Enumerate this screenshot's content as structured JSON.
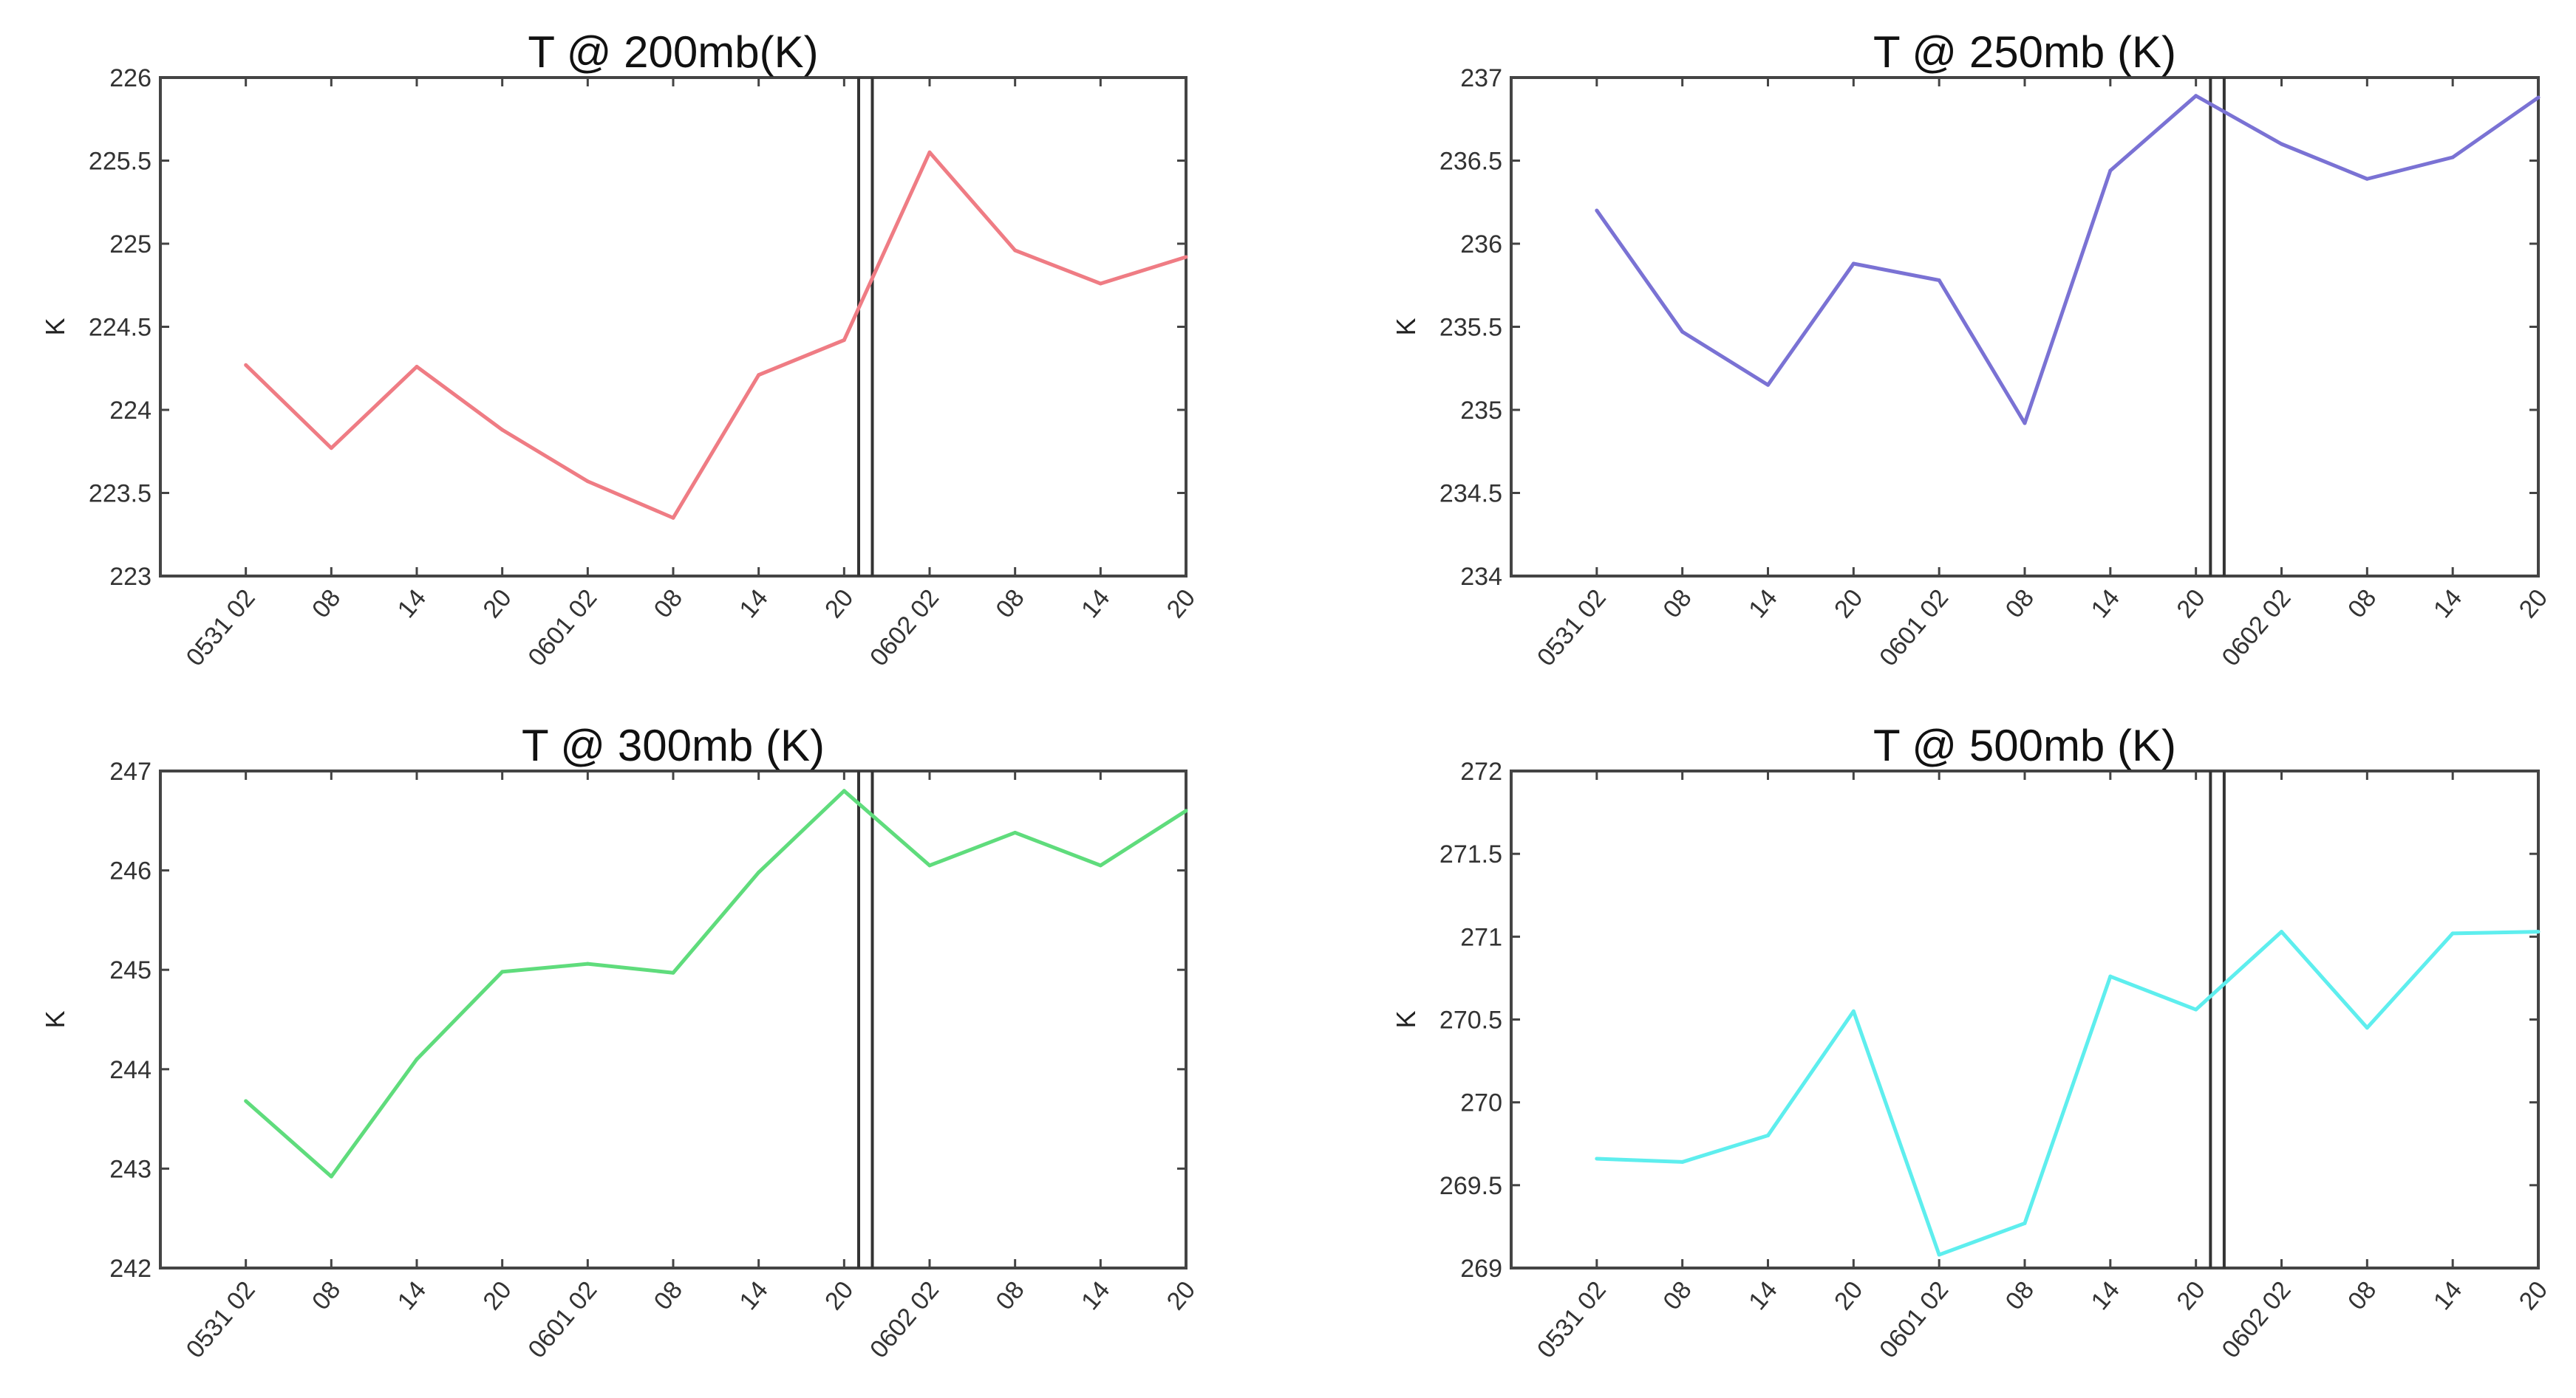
{
  "chart_data": [
    {
      "type": "line",
      "title": "T @ 200mb(K)",
      "ylabel": "K",
      "xlabel": "",
      "categories": [
        "0531 02",
        "08",
        "14",
        "20",
        "0601 02",
        "08",
        "14",
        "20",
        "0602 02",
        "08",
        "14",
        "20"
      ],
      "ylim": [
        223,
        226
      ],
      "yticks": [
        "223",
        "223.5",
        "224",
        "224.5",
        "225",
        "225.5",
        "226"
      ],
      "color": "#ef7c84",
      "values": [
        224.27,
        223.77,
        224.26,
        223.88,
        223.57,
        223.35,
        224.21,
        224.42,
        225.55,
        224.96,
        224.76,
        224.92
      ],
      "vertical_markers": [
        7.17,
        7.33
      ],
      "grid": false
    },
    {
      "type": "line",
      "title": "T @ 250mb (K)",
      "ylabel": "K",
      "xlabel": "",
      "categories": [
        "0531 02",
        "08",
        "14",
        "20",
        "0601 02",
        "08",
        "14",
        "20",
        "0602 02",
        "08",
        "14",
        "20"
      ],
      "ylim": [
        234,
        237
      ],
      "yticks": [
        "234",
        "234.5",
        "235",
        "235.5",
        "236",
        "236.5",
        "237"
      ],
      "color": "#7a72d4",
      "values": [
        236.2,
        235.47,
        235.15,
        235.88,
        235.78,
        234.92,
        236.44,
        236.89,
        236.6,
        236.39,
        236.52,
        236.88
      ],
      "vertical_markers": [
        7.17,
        7.33
      ],
      "grid": false
    },
    {
      "type": "line",
      "title": "T @ 300mb (K)",
      "ylabel": "K",
      "xlabel": "",
      "categories": [
        "0531 02",
        "08",
        "14",
        "20",
        "0601 02",
        "08",
        "14",
        "20",
        "0602 02",
        "08",
        "14",
        "20"
      ],
      "ylim": [
        242,
        247
      ],
      "yticks": [
        "242",
        "243",
        "244",
        "245",
        "246",
        "247"
      ],
      "color": "#5fdc7c",
      "values": [
        243.68,
        242.92,
        244.1,
        244.98,
        245.06,
        244.97,
        245.98,
        246.8,
        246.05,
        246.38,
        246.05,
        246.6
      ],
      "vertical_markers": [
        7.17,
        7.33
      ],
      "grid": false
    },
    {
      "type": "line",
      "title": "T @ 500mb (K)",
      "ylabel": "K",
      "xlabel": "",
      "categories": [
        "0531 02",
        "08",
        "14",
        "20",
        "0601 02",
        "08",
        "14",
        "20",
        "0602 02",
        "08",
        "14",
        "20"
      ],
      "ylim": [
        269,
        272
      ],
      "yticks": [
        "269",
        "269.5",
        "270",
        "270.5",
        "271",
        "271.5",
        "272"
      ],
      "color": "#5eeeee",
      "values": [
        269.66,
        269.64,
        269.8,
        270.55,
        269.08,
        269.27,
        270.76,
        270.56,
        271.03,
        270.45,
        271.02,
        271.03
      ],
      "vertical_markers": [
        7.17,
        7.33
      ],
      "grid": false
    }
  ]
}
